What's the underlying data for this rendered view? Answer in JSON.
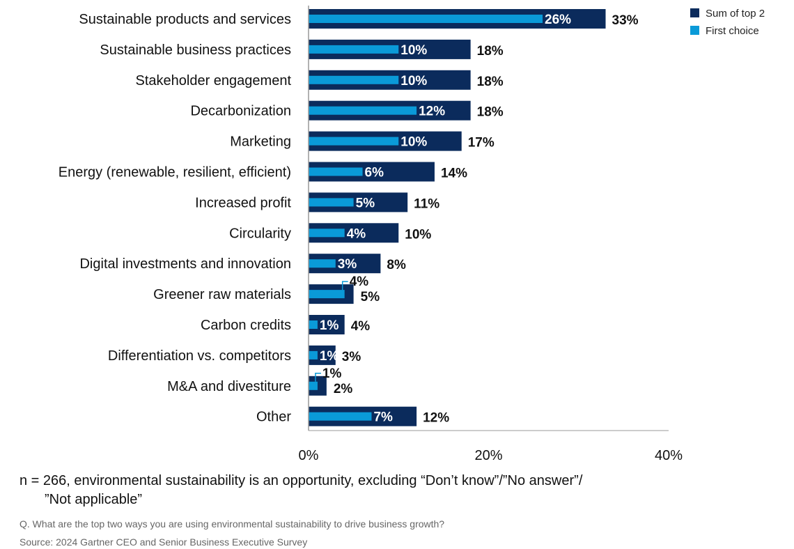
{
  "chart_data": {
    "type": "bar",
    "orientation": "horizontal",
    "categories": [
      "Sustainable products and services",
      "Sustainable business practices",
      "Stakeholder engagement",
      "Decarbonization",
      "Marketing",
      "Energy (renewable, resilient, efficient)",
      "Increased profit",
      "Circularity",
      "Digital investments and innovation",
      "Greener raw materials",
      "Carbon credits",
      "Differentiation vs. competitors",
      "M&A and divestiture",
      "Other"
    ],
    "series": [
      {
        "name": "Sum of top 2",
        "color": "#0b2b5c",
        "values": [
          33,
          18,
          18,
          18,
          17,
          14,
          11,
          10,
          8,
          5,
          4,
          3,
          2,
          12
        ]
      },
      {
        "name": "First choice",
        "color": "#0a9ad8",
        "values": [
          26,
          10,
          10,
          12,
          10,
          6,
          5,
          4,
          3,
          4,
          1,
          1,
          1,
          7
        ]
      }
    ],
    "xlim": [
      0,
      40
    ],
    "xticks": [
      "0%",
      "20%",
      "40%"
    ],
    "legend_position": "top-right",
    "grid": false
  },
  "notes": {
    "line1": "n = 266, environmental sustainability is an opportunity, excluding “Don’t know”/”No answer”/",
    "line2": "”Not applicable”",
    "question": "Q. What are the top two ways you are using environmental sustainability to drive business growth?",
    "source": "Source: 2024 Gartner CEO and Senior Business Executive Survey"
  }
}
